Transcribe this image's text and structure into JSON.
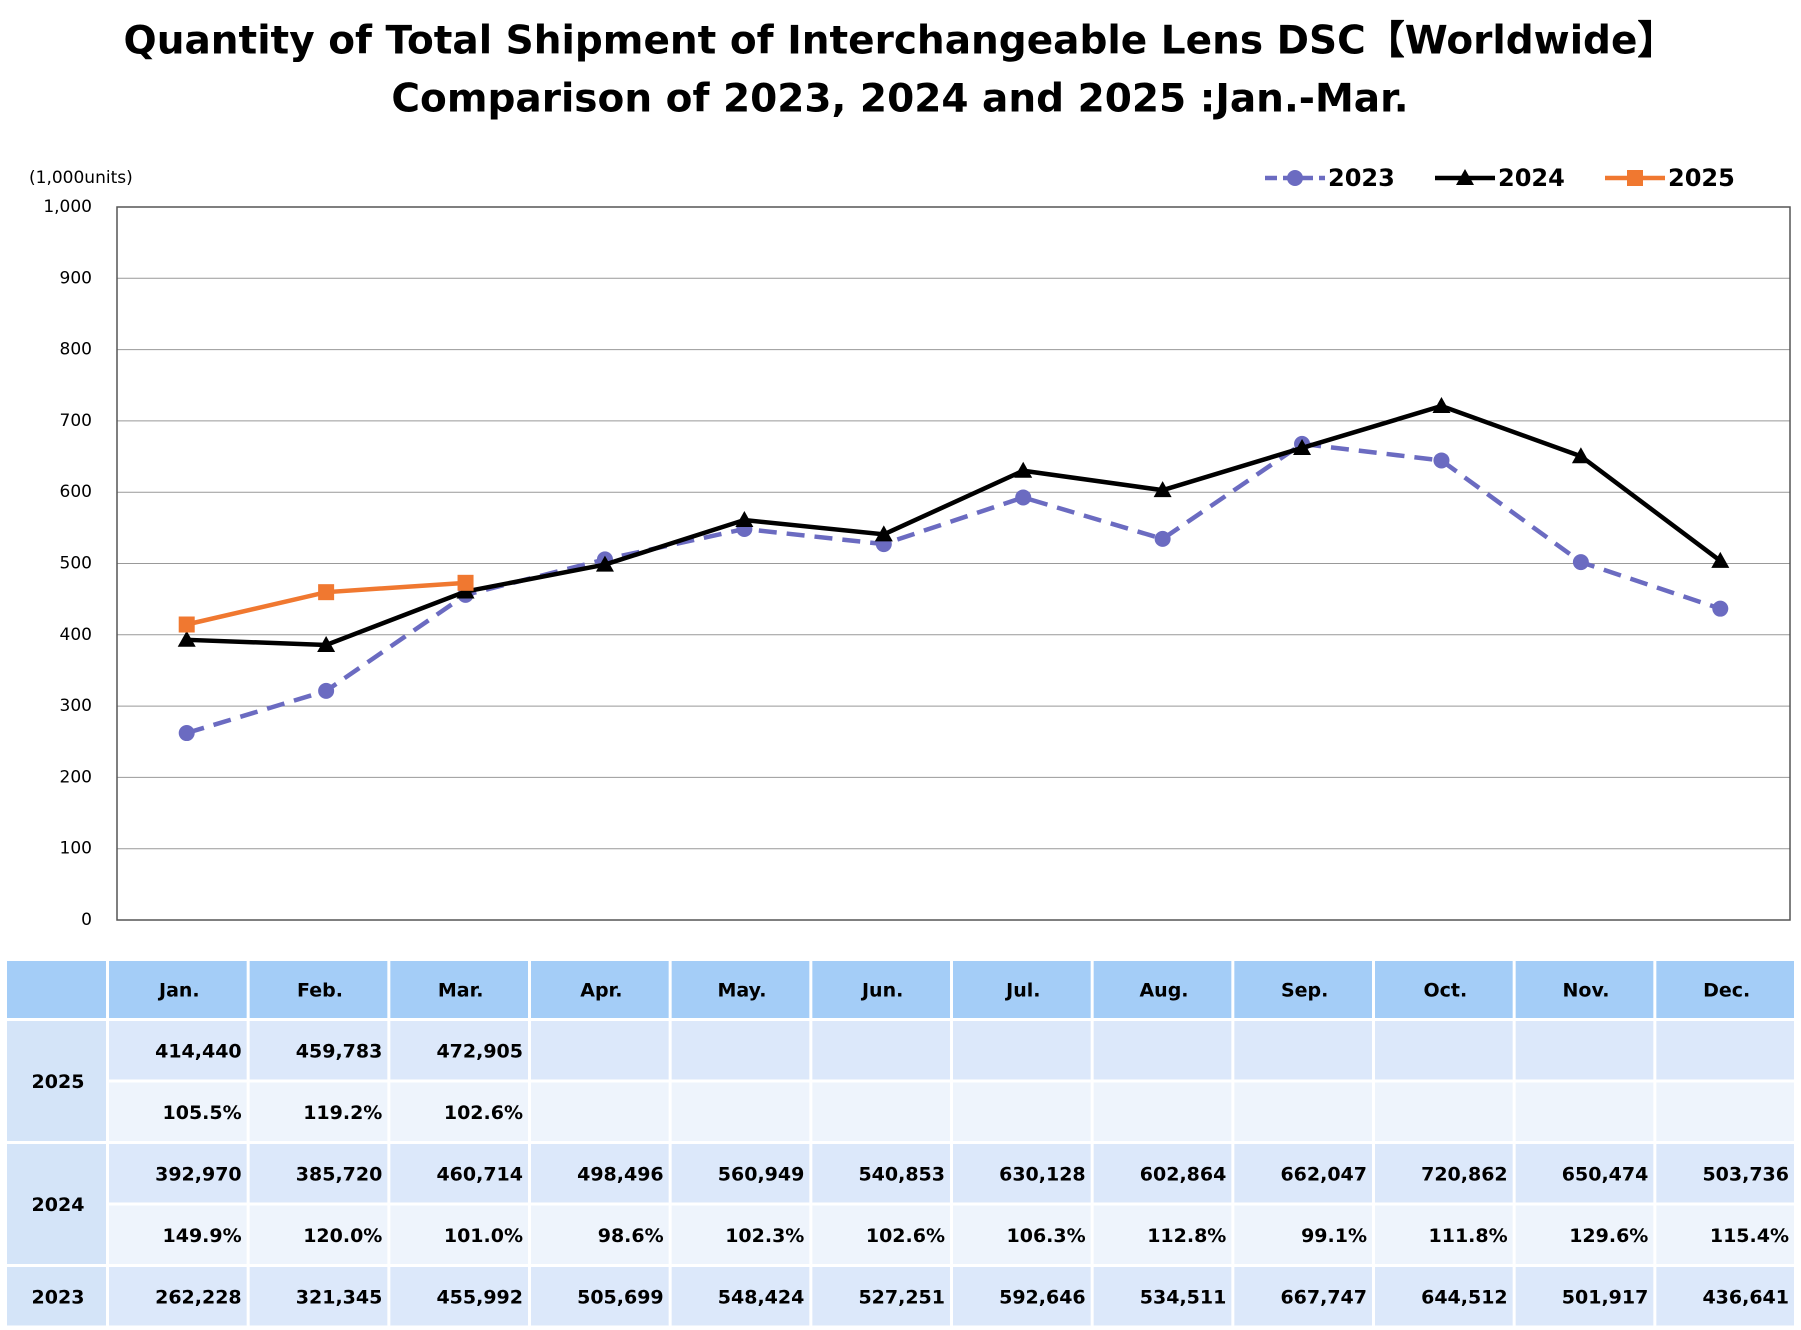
{
  "chart_data": {
    "type": "line",
    "title": "Quantity of Total Shipment of Interchangeable Lens DSC【Worldwide】",
    "subtitle": "Comparison of 2023, 2024 and 2025 :Jan.-Mar.",
    "y_label": "(1,000units)",
    "ylim": [
      0,
      1000
    ],
    "yticks": [
      0,
      100,
      200,
      300,
      400,
      500,
      600,
      700,
      800,
      900,
      {
        "value": 1000,
        "label": "1,000"
      }
    ],
    "grid": true,
    "legend": "top-right",
    "series": [
      {
        "name": "2023",
        "color": "#6b6bc1",
        "marker": "circle",
        "dashed": true,
        "values": [
          262.228,
          321.345,
          455.992,
          505.699,
          548.424,
          527.251,
          592.646,
          534.511,
          667.747,
          644.512,
          501.917,
          436.641
        ]
      },
      {
        "name": "2024",
        "color": "#000000",
        "marker": "triangle",
        "dashed": false,
        "values": [
          392.97,
          385.72,
          460.714,
          498.496,
          560.949,
          540.853,
          630.128,
          602.864,
          662.047,
          720.862,
          650.474,
          503.736
        ]
      },
      {
        "name": "2025",
        "color": "#f07830",
        "marker": "square",
        "dashed": false,
        "values": [
          414.44,
          459.783,
          472.905,
          null,
          null,
          null,
          null,
          null,
          null,
          null,
          null,
          null
        ]
      }
    ]
  },
  "table": {
    "header": [
      "Jan.",
      "Feb.",
      "Mar.",
      "Apr.",
      "May.",
      "Jun.",
      "Jul.",
      "Aug.",
      "Sep.",
      "Oct.",
      "Nov.",
      "Dec."
    ],
    "rows": [
      {
        "label": "2025",
        "values": [
          "414,440",
          "459,783",
          "472,905"
        ],
        "ratios": [
          "105.5%",
          "119.2%",
          "102.6%"
        ]
      },
      {
        "label": "2024",
        "values": [
          "392,970",
          "385,720",
          "460,714",
          "498,496",
          "560,949",
          "540,853",
          "630,128",
          "602,864",
          "662,047",
          "720,862",
          "650,474",
          "503,736"
        ],
        "ratios": [
          "149.9%",
          "120.0%",
          "101.0%",
          "98.6%",
          "102.3%",
          "102.6%",
          "106.3%",
          "112.8%",
          "99.1%",
          "111.8%",
          "129.6%",
          "115.4%"
        ]
      },
      {
        "label": "2023",
        "values": [
          "262,228",
          "321,345",
          "455,992",
          "505,699",
          "548,424",
          "527,251",
          "592,646",
          "534,511",
          "667,747",
          "644,512",
          "501,917",
          "436,641"
        ]
      }
    ]
  }
}
